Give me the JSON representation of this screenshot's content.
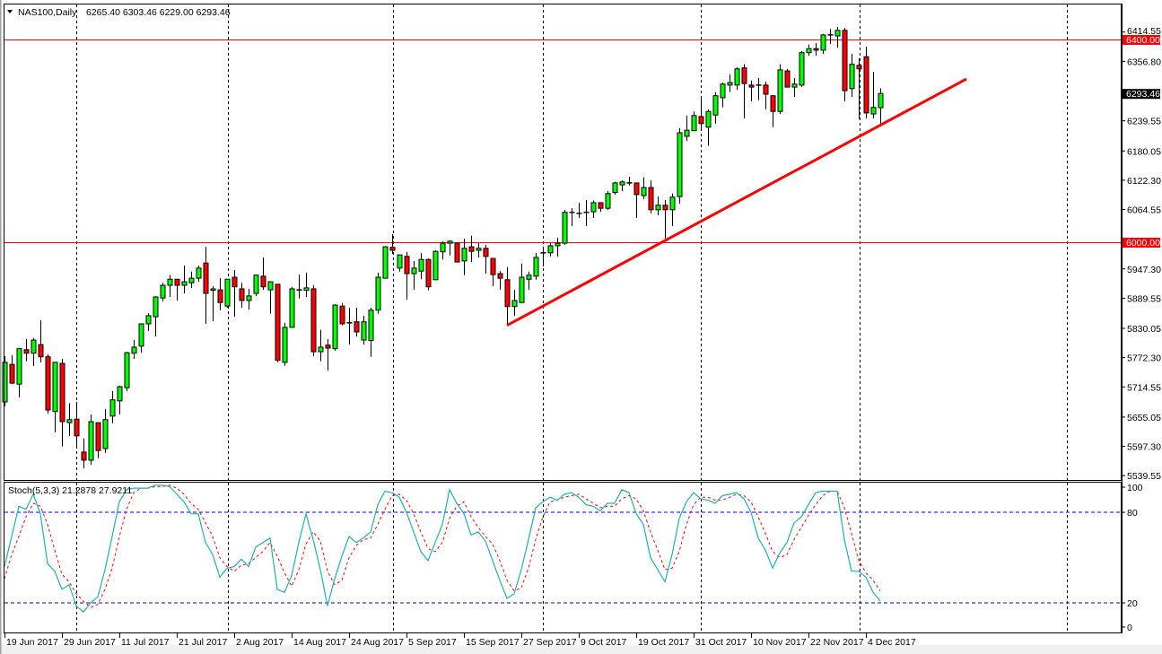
{
  "header": {
    "symbol_label": "NAS100,Daily",
    "ohlc_label": "6265.40 6303.46 6229.00 6293.46"
  },
  "indicator": {
    "label": "Stoch(5,3,3) 21.2878 27.9211"
  },
  "colors": {
    "bull": "#00ff00",
    "bear": "#ff0000",
    "level_line": "#ff0000",
    "trendline": "#ff0000",
    "stoch_main": "#20b2aa",
    "stoch_signal": "#ff0000",
    "stoch_levels": "#0000ff",
    "current_price_bg": "#000000"
  },
  "chart_data": [
    {
      "type": "candlestick",
      "title": "NAS100,Daily",
      "ylim": [
        5520,
        6440
      ],
      "y_tick_labels": [
        "6414.55",
        "6356.80",
        "6239.55",
        "6180.05",
        "6122.30",
        "6064.55",
        "5947.30",
        "5889.55",
        "5830.05",
        "5772.30",
        "5714.55",
        "5655.05",
        "5597.30",
        "5539.55"
      ],
      "x_tick_labels": [
        "19 Jun 2017",
        "29 Jun 2017",
        "11 Jul 2017",
        "21 Jul 2017",
        "2 Aug 2017",
        "14 Aug 2017",
        "24 Aug 2017",
        "5 Sep 2017",
        "15 Sep 2017",
        "27 Sep 2017",
        "9 Oct 2017",
        "19 Oct 2017",
        "31 Oct 2017",
        "10 Nov 2017",
        "22 Nov 2017",
        "4 Dec 2017"
      ],
      "current_price": "6293.46",
      "horizontal_levels": [
        {
          "label": "6400.00",
          "price": 6400
        },
        {
          "label": "6000.00",
          "price": 6000
        }
      ],
      "trendline": {
        "from": {
          "bar": 70,
          "price": 5836
        },
        "to": {
          "bar": 134,
          "price": 6322
        }
      },
      "ohlc": [
        [
          5685,
          5775,
          5676,
          5763
        ],
        [
          5759,
          5777,
          5720,
          5722
        ],
        [
          5720,
          5791,
          5694,
          5790
        ],
        [
          5788,
          5809,
          5765,
          5781
        ],
        [
          5781,
          5811,
          5756,
          5807
        ],
        [
          5798,
          5846,
          5763,
          5774
        ],
        [
          5774,
          5779,
          5662,
          5669
        ],
        [
          5666,
          5763,
          5625,
          5763
        ],
        [
          5761,
          5770,
          5597,
          5646
        ],
        [
          5644,
          5682,
          5618,
          5650
        ],
        [
          5651,
          5685,
          5597,
          5618
        ],
        [
          5586,
          5613,
          5554,
          5570
        ],
        [
          5570,
          5660,
          5561,
          5646
        ],
        [
          5644,
          5644,
          5574,
          5589
        ],
        [
          5593,
          5671,
          5584,
          5650
        ],
        [
          5657,
          5706,
          5643,
          5689
        ],
        [
          5687,
          5717,
          5660,
          5715
        ],
        [
          5713,
          5784,
          5706,
          5782
        ],
        [
          5781,
          5807,
          5770,
          5793
        ],
        [
          5795,
          5839,
          5782,
          5839
        ],
        [
          5839,
          5860,
          5825,
          5855
        ],
        [
          5853,
          5894,
          5814,
          5892
        ],
        [
          5890,
          5920,
          5883,
          5915
        ],
        [
          5915,
          5935,
          5892,
          5927
        ],
        [
          5927,
          5927,
          5885,
          5915
        ],
        [
          5915,
          5954,
          5899,
          5922
        ],
        [
          5920,
          5942,
          5910,
          5929
        ],
        [
          5929,
          5954,
          5922,
          5949
        ],
        [
          5959,
          5991,
          5839,
          5899
        ],
        [
          5905,
          5913,
          5844,
          5908
        ],
        [
          5906,
          5929,
          5866,
          5881
        ],
        [
          5874,
          5927,
          5871,
          5927
        ],
        [
          5931,
          5945,
          5853,
          5912
        ],
        [
          5908,
          5920,
          5871,
          5885
        ],
        [
          5885,
          5908,
          5867,
          5894
        ],
        [
          5899,
          5936,
          5894,
          5935
        ],
        [
          5933,
          5970,
          5906,
          5912
        ],
        [
          5906,
          5922,
          5859,
          5922
        ],
        [
          5917,
          5917,
          5763,
          5767
        ],
        [
          5763,
          5841,
          5756,
          5832
        ],
        [
          5832,
          5912,
          5832,
          5908
        ],
        [
          5906,
          5936,
          5889,
          5906
        ],
        [
          5905,
          5940,
          5892,
          5910
        ],
        [
          5908,
          5915,
          5775,
          5784
        ],
        [
          5784,
          5827,
          5765,
          5793
        ],
        [
          5797,
          5809,
          5747,
          5791
        ],
        [
          5790,
          5878,
          5786,
          5876
        ],
        [
          5874,
          5880,
          5836,
          5839
        ],
        [
          5841,
          5871,
          5798,
          5841
        ],
        [
          5843,
          5871,
          5814,
          5823
        ],
        [
          5807,
          5855,
          5798,
          5843
        ],
        [
          5806,
          5871,
          5774,
          5866
        ],
        [
          5866,
          5940,
          5859,
          5931
        ],
        [
          5929,
          5993,
          5929,
          5991
        ],
        [
          5990,
          6016,
          5977,
          5984
        ],
        [
          5949,
          5975,
          5942,
          5975
        ],
        [
          5972,
          5981,
          5887,
          5938
        ],
        [
          5938,
          5963,
          5906,
          5949
        ],
        [
          5943,
          5979,
          5927,
          5966
        ],
        [
          5966,
          5968,
          5905,
          5912
        ],
        [
          5926,
          5984,
          5926,
          5982
        ],
        [
          5981,
          6002,
          5966,
          5998
        ],
        [
          5998,
          6004,
          5974,
          6002
        ],
        [
          5998,
          5998,
          5961,
          5961
        ],
        [
          5963,
          6007,
          5935,
          5988
        ],
        [
          5991,
          6013,
          5961,
          5982
        ],
        [
          5984,
          5998,
          5970,
          5988
        ],
        [
          5988,
          5995,
          5938,
          5972
        ],
        [
          5968,
          5968,
          5913,
          5936
        ],
        [
          5938,
          5943,
          5906,
          5929
        ],
        [
          5926,
          5951,
          5836,
          5873
        ],
        [
          5873,
          5906,
          5855,
          5885
        ],
        [
          5881,
          5958,
          5880,
          5931
        ],
        [
          5927,
          5942,
          5906,
          5935
        ],
        [
          5933,
          5979,
          5926,
          5970
        ],
        [
          5979,
          5988,
          5952,
          5979
        ],
        [
          5979,
          5998,
          5972,
          5993
        ],
        [
          5993,
          6009,
          5972,
          5998
        ],
        [
          5998,
          6064,
          5995,
          6059
        ],
        [
          6057,
          6067,
          6032,
          6059
        ],
        [
          6057,
          6078,
          6048,
          6057
        ],
        [
          6057,
          6083,
          6032,
          6059
        ],
        [
          6060,
          6082,
          6048,
          6078
        ],
        [
          6078,
          6078,
          6060,
          6067
        ],
        [
          6067,
          6101,
          6064,
          6096
        ],
        [
          6098,
          6119,
          6094,
          6117
        ],
        [
          6113,
          6122,
          6101,
          6119
        ],
        [
          6117,
          6129,
          6112,
          6117
        ],
        [
          6117,
          6117,
          6048,
          6094
        ],
        [
          6092,
          6128,
          6085,
          6108
        ],
        [
          6108,
          6122,
          6057,
          6064
        ],
        [
          6064,
          6090,
          6053,
          6073
        ],
        [
          6073,
          6083,
          6007,
          6064
        ],
        [
          6064,
          6096,
          6032,
          6089
        ],
        [
          6090,
          6225,
          6076,
          6216
        ],
        [
          6209,
          6250,
          6200,
          6221
        ],
        [
          6220,
          6258,
          6220,
          6250
        ],
        [
          6248,
          6283,
          6221,
          6234
        ],
        [
          6227,
          6262,
          6190,
          6258
        ],
        [
          6251,
          6296,
          6234,
          6289
        ],
        [
          6285,
          6315,
          6266,
          6312
        ],
        [
          6310,
          6331,
          6296,
          6315
        ],
        [
          6310,
          6345,
          6301,
          6342
        ],
        [
          6344,
          6351,
          6244,
          6313
        ],
        [
          6310,
          6319,
          6278,
          6306
        ],
        [
          6310,
          6324,
          6280,
          6310
        ],
        [
          6310,
          6317,
          6262,
          6292
        ],
        [
          6289,
          6290,
          6227,
          6258
        ],
        [
          6258,
          6351,
          6253,
          6340
        ],
        [
          6338,
          6342,
          6306,
          6306
        ],
        [
          6306,
          6324,
          6287,
          6312
        ],
        [
          6310,
          6377,
          6306,
          6374
        ],
        [
          6374,
          6390,
          6368,
          6382
        ],
        [
          6382,
          6393,
          6368,
          6379
        ],
        [
          6379,
          6411,
          6372,
          6409
        ],
        [
          6409,
          6421,
          6391,
          6409
        ],
        [
          6407,
          6425,
          6384,
          6418
        ],
        [
          6418,
          6423,
          6278,
          6299
        ],
        [
          6303,
          6372,
          6287,
          6351
        ],
        [
          6349,
          6363,
          6243,
          6342
        ],
        [
          6366,
          6386,
          6244,
          6255
        ],
        [
          6253,
          6336,
          6244,
          6266
        ],
        [
          6265.4,
          6303.46,
          6229.0,
          6293.46
        ]
      ]
    },
    {
      "type": "line",
      "title": "Stoch(5,3,3)",
      "ylim": [
        0,
        100
      ],
      "y_tick_labels": [
        "100",
        "80",
        "20",
        "0"
      ],
      "levels": [
        80,
        20
      ],
      "series": [
        {
          "name": "Main",
          "values": [
            44,
            64,
            84,
            82,
            92,
            79,
            46,
            41,
            29,
            32,
            18,
            14,
            20,
            24,
            42,
            64,
            87,
            95,
            96,
            96,
            96,
            98,
            98,
            97,
            92,
            87,
            79,
            79,
            60,
            52,
            37,
            43,
            44,
            49,
            44,
            57,
            60,
            63,
            29,
            27,
            38,
            60,
            79,
            62,
            42,
            18,
            36,
            51,
            64,
            60,
            63,
            67,
            85,
            94,
            93,
            90,
            80,
            67,
            54,
            48,
            60,
            72,
            95,
            86,
            79,
            65,
            67,
            61,
            48,
            35,
            23,
            26,
            42,
            62,
            83,
            87,
            90,
            88,
            92,
            93,
            90,
            85,
            84,
            81,
            86,
            86,
            95,
            93,
            79,
            72,
            50,
            42,
            34,
            52,
            76,
            87,
            93,
            89,
            88,
            86,
            91,
            92,
            93,
            89,
            80,
            63,
            55,
            43,
            53,
            60,
            73,
            77,
            85,
            93,
            94,
            94,
            94,
            62,
            41,
            41,
            37,
            27,
            21.29
          ]
        },
        {
          "name": "Signal",
          "values": [
            36,
            52,
            64,
            77,
            86,
            84,
            72,
            55,
            39,
            34,
            26,
            21,
            17,
            19,
            29,
            43,
            64,
            82,
            93,
            96,
            96,
            97,
            97,
            98,
            96,
            92,
            86,
            82,
            73,
            64,
            50,
            44,
            41,
            45,
            46,
            50,
            54,
            60,
            51,
            40,
            31,
            42,
            59,
            67,
            61,
            41,
            32,
            35,
            50,
            58,
            62,
            63,
            72,
            82,
            91,
            92,
            88,
            79,
            67,
            56,
            54,
            60,
            76,
            84,
            87,
            77,
            70,
            64,
            59,
            48,
            35,
            28,
            30,
            43,
            62,
            77,
            87,
            88,
            90,
            91,
            92,
            89,
            86,
            83,
            84,
            84,
            89,
            91,
            89,
            81,
            67,
            55,
            42,
            43,
            54,
            72,
            85,
            90,
            90,
            88,
            88,
            90,
            92,
            91,
            87,
            77,
            66,
            54,
            50,
            52,
            62,
            70,
            78,
            85,
            91,
            94,
            94,
            83,
            66,
            48,
            40,
            35,
            27.92
          ]
        }
      ]
    }
  ]
}
